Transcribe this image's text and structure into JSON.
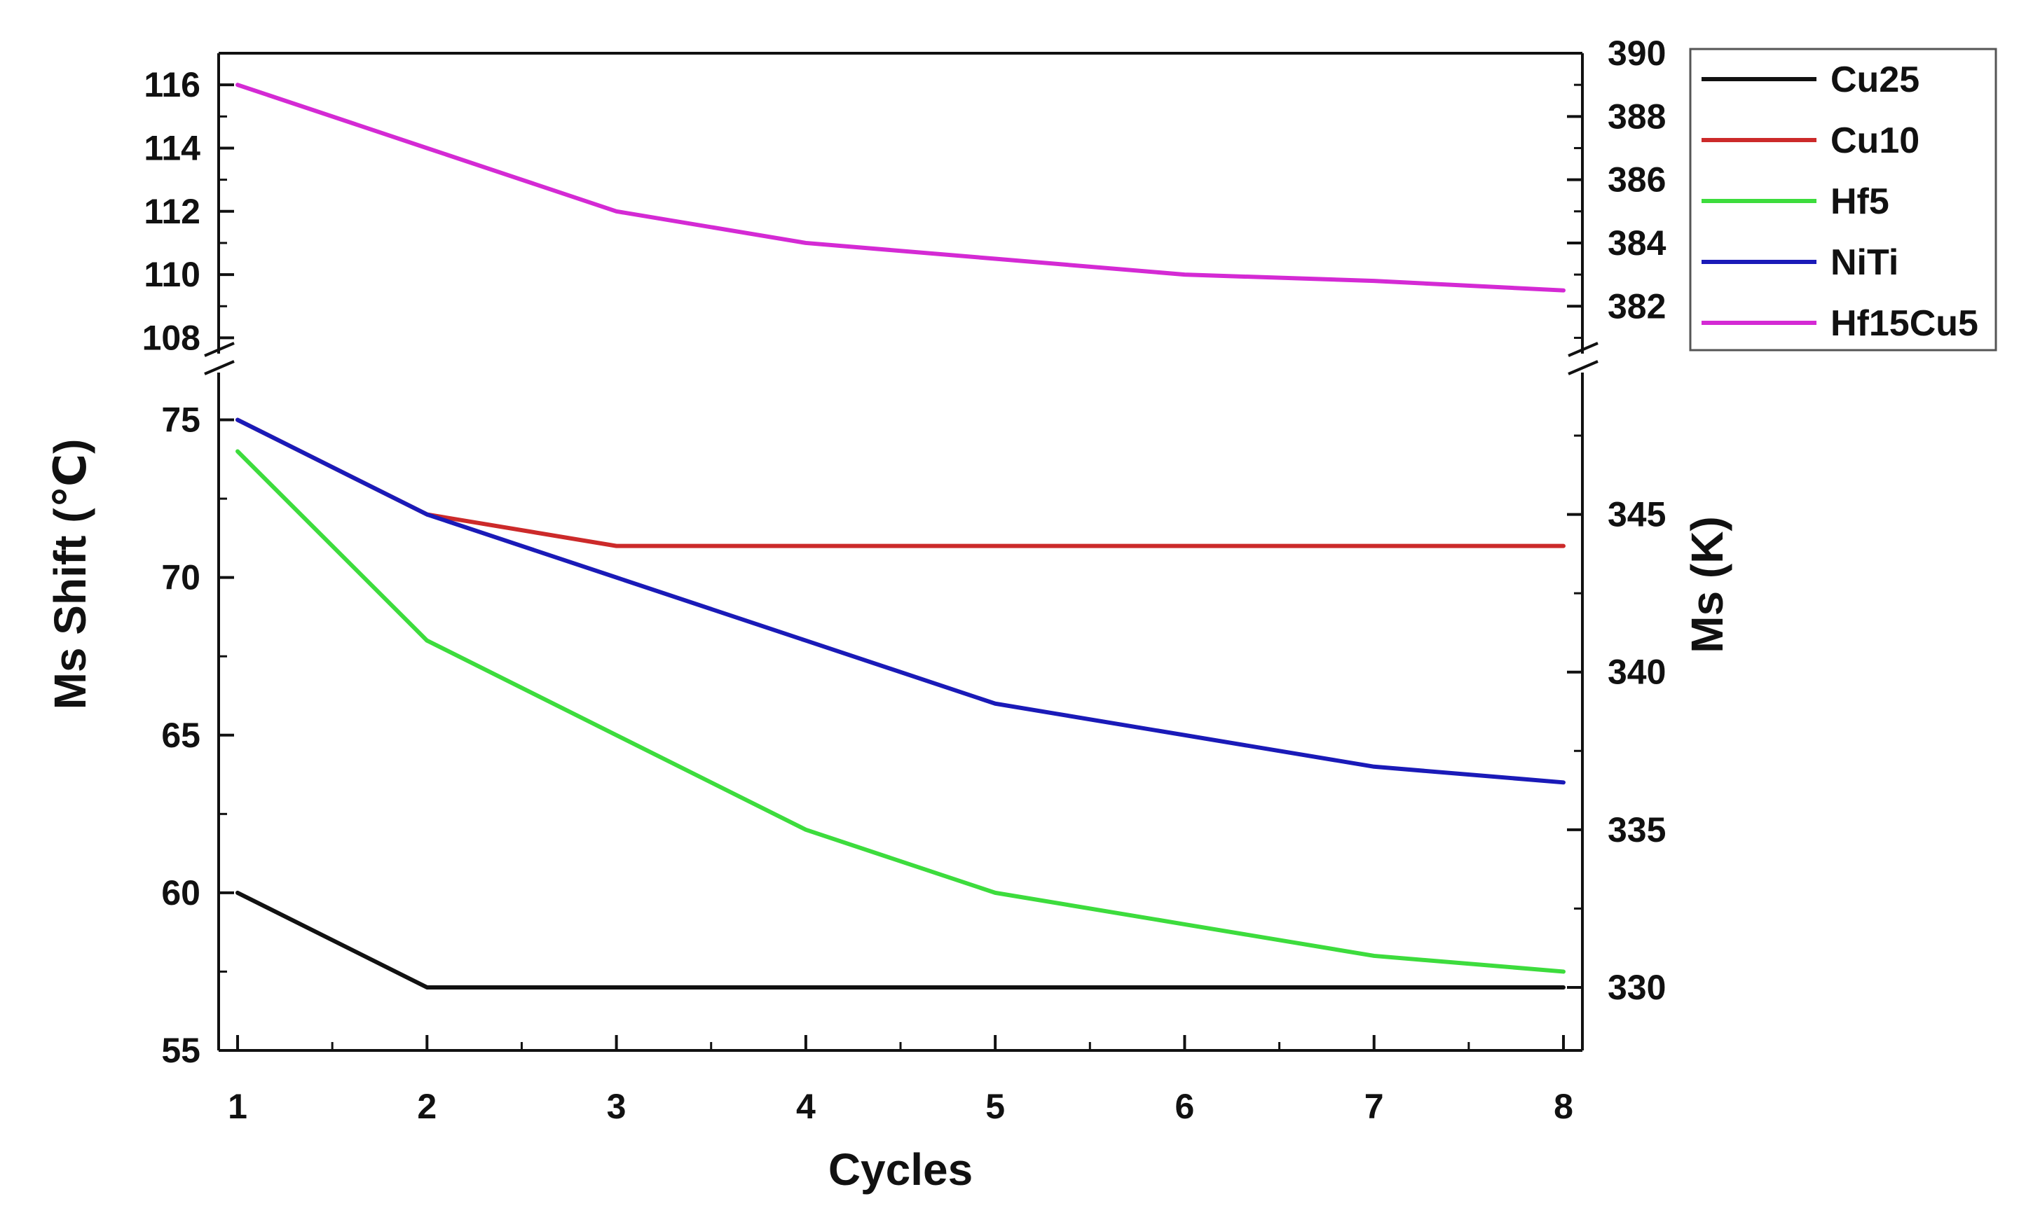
{
  "chart_data": {
    "type": "line",
    "xlabel": "Cycles",
    "ylabel_left": "Ms Shift (℃)",
    "ylabel_right": "Ms (K)",
    "x": [
      1,
      2,
      3,
      4,
      5,
      6,
      7,
      8
    ],
    "x_ticks": [
      "1",
      "2",
      "3",
      "4",
      "5",
      "6",
      "7",
      "8"
    ],
    "x_range": [
      0.9,
      8.1
    ],
    "axis_break": true,
    "upper_panel": {
      "left_range": [
        107.5,
        117
      ],
      "left_ticks": [
        "108",
        "110",
        "112",
        "114",
        "116"
      ],
      "right_range": [
        380.5,
        390
      ],
      "right_ticks": [
        "382",
        "384",
        "386",
        "388",
        "390"
      ]
    },
    "lower_panel": {
      "left_range": [
        55,
        76.5
      ],
      "left_ticks": [
        "55",
        "60",
        "65",
        "70",
        "75"
      ],
      "right_range": [
        328,
        349.5
      ],
      "right_ticks": [
        "330",
        "335",
        "340",
        "345"
      ]
    },
    "legend_position": "outside-top-right",
    "series": [
      {
        "name": "Cu25",
        "color": "#111111",
        "panel": "lower",
        "values": [
          60,
          57,
          57,
          57,
          57,
          57,
          57,
          57
        ]
      },
      {
        "name": "Cu10",
        "color": "#cc2a2a",
        "panel": "lower",
        "values": [
          75,
          72,
          71,
          71,
          71,
          71,
          71,
          71
        ]
      },
      {
        "name": "Hf5",
        "color": "#3ddc3d",
        "panel": "lower",
        "values": [
          74,
          68,
          65,
          62,
          60,
          59,
          58,
          57.5
        ]
      },
      {
        "name": "NiTi",
        "color": "#1a1ab8",
        "panel": "lower",
        "values": [
          75,
          72,
          70,
          68,
          66,
          65,
          64,
          63.5
        ]
      },
      {
        "name": "Hf15Cu5",
        "color": "#d42ad4",
        "panel": "upper",
        "values": [
          116,
          114,
          112,
          111,
          110.5,
          110,
          109.8,
          109.5
        ]
      }
    ]
  }
}
